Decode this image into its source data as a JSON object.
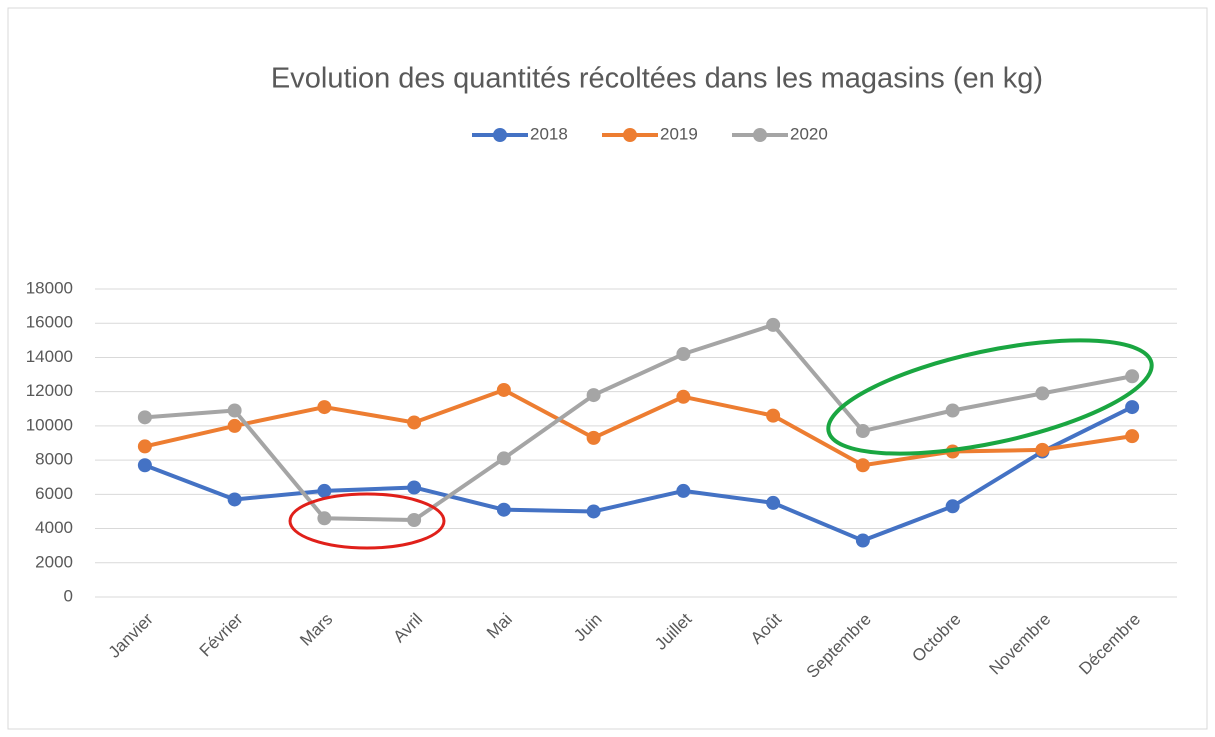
{
  "chart_data": {
    "type": "line",
    "title": "Evolution des quantités récoltées dans les magasins (en kg)",
    "categories": [
      "Janvier",
      "Février",
      "Mars",
      "Avril",
      "Mai",
      "Juin",
      "Juillet",
      "Août",
      "Septembre",
      "Octobre",
      "Novembre",
      "Décembre"
    ],
    "series": [
      {
        "name": "2018",
        "color": "#4472c4",
        "values": [
          7700,
          5700,
          6200,
          6400,
          5100,
          5000,
          6200,
          5500,
          3300,
          5300,
          8500,
          11100
        ]
      },
      {
        "name": "2019",
        "color": "#ed7d31",
        "values": [
          8800,
          10000,
          11100,
          10200,
          12100,
          9300,
          11700,
          10600,
          7700,
          8500,
          8600,
          9400
        ]
      },
      {
        "name": "2020",
        "color": "#a5a5a5",
        "values": [
          10500,
          10900,
          4600,
          4500,
          8100,
          11800,
          14200,
          15900,
          9700,
          10900,
          11900,
          12900
        ]
      }
    ],
    "ylim": [
      0,
      18000
    ],
    "yticks": [
      0,
      2000,
      4000,
      6000,
      8000,
      10000,
      12000,
      14000,
      16000,
      18000
    ],
    "grid": true,
    "legend": "top"
  }
}
